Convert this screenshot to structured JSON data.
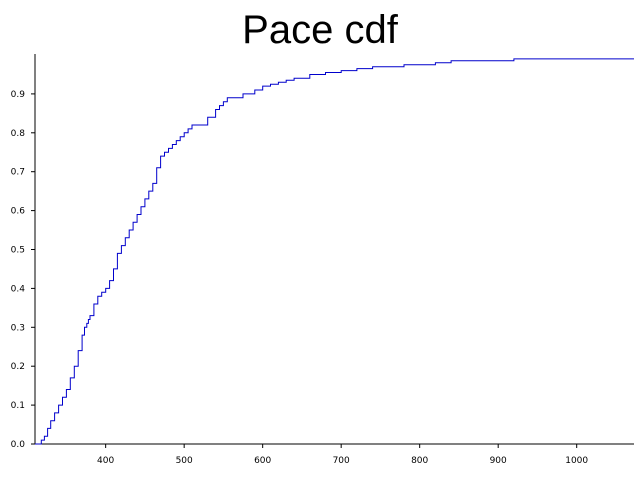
{
  "chart_data": {
    "type": "line",
    "title": "Pace cdf",
    "xlabel": "",
    "ylabel": "",
    "xlim": [
      310,
      1073
    ],
    "ylim": [
      0.0,
      1.0
    ],
    "grid": false,
    "legend": "none",
    "x_ticks": [
      400,
      500,
      600,
      700,
      800,
      900,
      1000
    ],
    "x_tick_labels": [
      "400",
      "500",
      "600",
      "700",
      "800",
      "900",
      "1000"
    ],
    "y_ticks": [
      0.0,
      0.1,
      0.2,
      0.3,
      0.4,
      0.5,
      0.6,
      0.7,
      0.8,
      0.9
    ],
    "y_tick_labels": [
      "0.0",
      "0.1",
      "0.2",
      "0.3",
      "0.4",
      "0.5",
      "0.6",
      "0.7",
      "0.8",
      "0.9"
    ],
    "series": [
      {
        "color": "#0000cc",
        "x": [
          310,
          318,
          322,
          326,
          330,
          335,
          340,
          345,
          350,
          355,
          360,
          365,
          370,
          373,
          376,
          378,
          380,
          385,
          390,
          395,
          400,
          405,
          410,
          415,
          420,
          425,
          430,
          435,
          440,
          445,
          450,
          455,
          460,
          465,
          470,
          475,
          480,
          485,
          490,
          495,
          500,
          505,
          510,
          520,
          530,
          540,
          545,
          550,
          555,
          560,
          565,
          570,
          575,
          580,
          590,
          600,
          610,
          620,
          630,
          640,
          660,
          680,
          700,
          720,
          740,
          760,
          780,
          800,
          820,
          840,
          880,
          920,
          960,
          1000,
          1073
        ],
        "y": [
          0.0,
          0.01,
          0.02,
          0.04,
          0.06,
          0.08,
          0.1,
          0.12,
          0.14,
          0.17,
          0.2,
          0.24,
          0.28,
          0.3,
          0.31,
          0.32,
          0.33,
          0.36,
          0.38,
          0.39,
          0.4,
          0.42,
          0.45,
          0.49,
          0.51,
          0.53,
          0.55,
          0.57,
          0.59,
          0.61,
          0.63,
          0.65,
          0.67,
          0.71,
          0.74,
          0.75,
          0.76,
          0.77,
          0.78,
          0.79,
          0.8,
          0.81,
          0.82,
          0.82,
          0.84,
          0.86,
          0.87,
          0.88,
          0.89,
          0.89,
          0.89,
          0.89,
          0.9,
          0.9,
          0.91,
          0.92,
          0.925,
          0.93,
          0.935,
          0.94,
          0.95,
          0.955,
          0.96,
          0.965,
          0.97,
          0.97,
          0.975,
          0.975,
          0.98,
          0.985,
          0.985,
          0.99,
          0.99,
          0.99,
          0.99
        ]
      }
    ]
  }
}
